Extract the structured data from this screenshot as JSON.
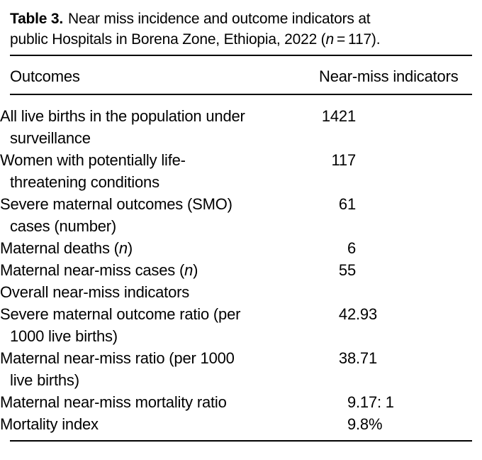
{
  "caption": {
    "label": "Table 3.",
    "text": "Near miss incidence and outcome indicators at\npublic Hospitals in Borena Zone, Ethiopia, 2022 (",
    "n": "n",
    "tail": " = 117)."
  },
  "table": {
    "columns": {
      "outcomes": "Outcomes",
      "indicators": "Near-miss indicators"
    },
    "rows": [
      {
        "l1": "All live births in the population under\nsurveillance",
        "int": "1421",
        "frac": ""
      },
      {
        "l1": "Women with potentially life-\nthreatening conditions",
        "int": "117",
        "frac": ""
      },
      {
        "l1": "Severe maternal outcomes (SMO)\ncases (number)",
        "int": "61",
        "frac": ""
      },
      {
        "l1": "Maternal deaths (",
        "it": "n",
        "l2": ")",
        "int": "6",
        "frac": ""
      },
      {
        "l1": "Maternal near-miss cases (",
        "it": "n",
        "l2": ")",
        "int": "55",
        "frac": ""
      },
      {
        "l1": "Overall near-miss indicators",
        "int": "",
        "frac": ""
      },
      {
        "l1": "Severe maternal outcome ratio (per\n1000 live births)",
        "int": "42",
        "frac": ".93"
      },
      {
        "l1": "Maternal near-miss ratio (per 1000\nlive births)",
        "int": "38",
        "frac": ".71"
      },
      {
        "l1": "Maternal near-miss mortality ratio",
        "int": "9",
        "frac": ".17: 1"
      },
      {
        "l1": "Mortality index",
        "int": "9",
        "frac": ".8%"
      }
    ]
  }
}
